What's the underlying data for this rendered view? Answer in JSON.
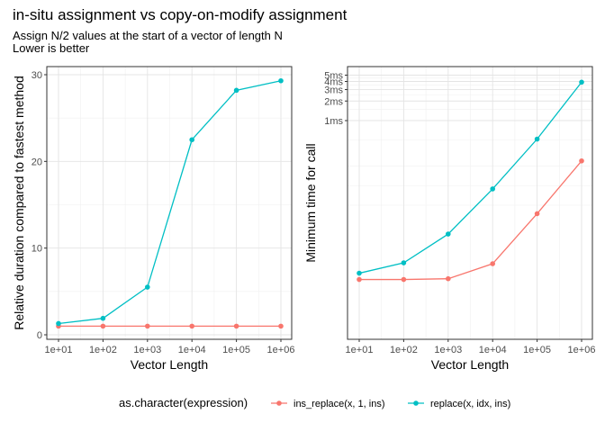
{
  "title": "in-situ assignment vs copy-on-modify assignment",
  "subtitle_lines": [
    "Assign N/2 values at the start of a vector of length N",
    "Lower is better"
  ],
  "legend": {
    "title": "as.character(expression)",
    "items": [
      {
        "label": "ins_replace(x, 1, ins)",
        "color": "#F8766D"
      },
      {
        "label": "replace(x, idx, ins)",
        "color": "#00BFC4"
      }
    ]
  },
  "chart_data": [
    {
      "type": "line",
      "xlabel": "Vector Length",
      "ylabel": "Relative duration compared to fastest method",
      "x": [
        "1e+01",
        "1e+02",
        "1e+03",
        "1e+04",
        "1e+05",
        "1e+06"
      ],
      "y_ticks": [
        "0",
        "10",
        "20",
        "30"
      ],
      "ylim": [
        0,
        30.5
      ],
      "grid": true,
      "series": [
        {
          "name": "ins_replace(x, 1, ins)",
          "color": "#F8766D",
          "values": [
            1,
            1,
            1,
            1,
            1,
            1
          ]
        },
        {
          "name": "replace(x, idx, ins)",
          "color": "#00BFC4",
          "values": [
            1.3,
            1.9,
            5.5,
            22.5,
            28.2,
            29.3
          ]
        }
      ]
    },
    {
      "type": "line",
      "xlabel": "Vector Length",
      "ylabel": "Minimum time for call",
      "y_scale": "log",
      "x": [
        "1e+01",
        "1e+02",
        "1e+03",
        "1e+04",
        "1e+05",
        "1e+06"
      ],
      "y_ticks": [
        "1ms",
        "2ms",
        "3ms",
        "4ms",
        "5ms"
      ],
      "grid": true,
      "series": [
        {
          "name": "ins_replace(x, 1, ins)",
          "color": "#F8766D",
          "values_ms": [
            0.0036,
            0.0036,
            0.0037,
            0.0063,
            0.037,
            0.24
          ]
        },
        {
          "name": "replace(x, idx, ins)",
          "color": "#00BFC4",
          "values_ms": [
            0.0045,
            0.0065,
            0.018,
            0.089,
            0.52,
            3.9
          ]
        }
      ]
    }
  ]
}
